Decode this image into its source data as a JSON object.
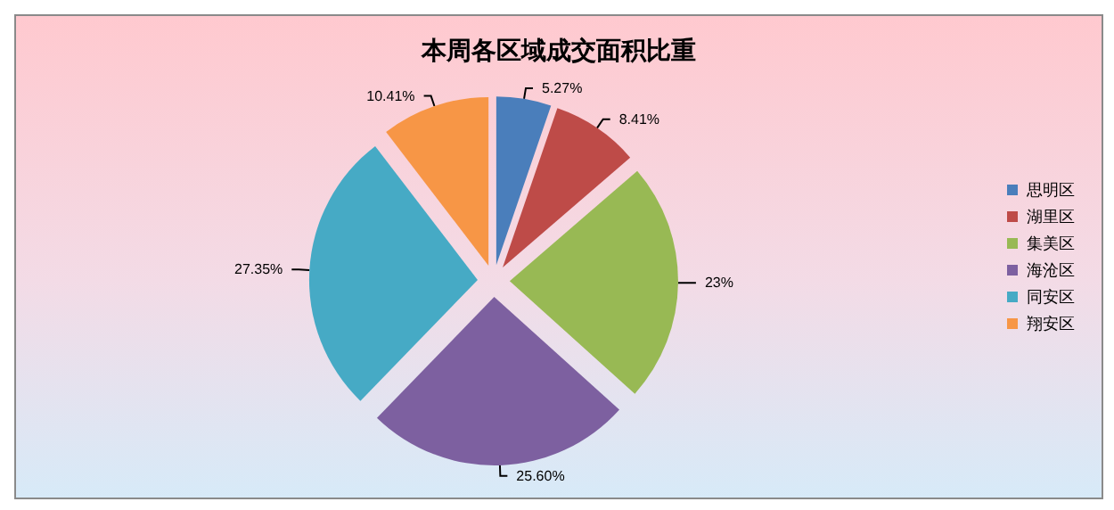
{
  "chart_data": {
    "type": "pie",
    "title": "本周各区域成交面积比重",
    "categories": [
      "思明区",
      "湖里区",
      "集美区",
      "海沧区",
      "同安区",
      "翔安区"
    ],
    "values": [
      5.27,
      8.41,
      23,
      25.6,
      27.35,
      10.41
    ],
    "value_labels": [
      "5.27%",
      "8.41%",
      "23%",
      "25.60%",
      "27.35%",
      "10.41%"
    ],
    "colors": [
      "#4a7ebb",
      "#be4b48",
      "#98b954",
      "#7d60a0",
      "#46aac5",
      "#f79646"
    ],
    "legend": "right"
  }
}
